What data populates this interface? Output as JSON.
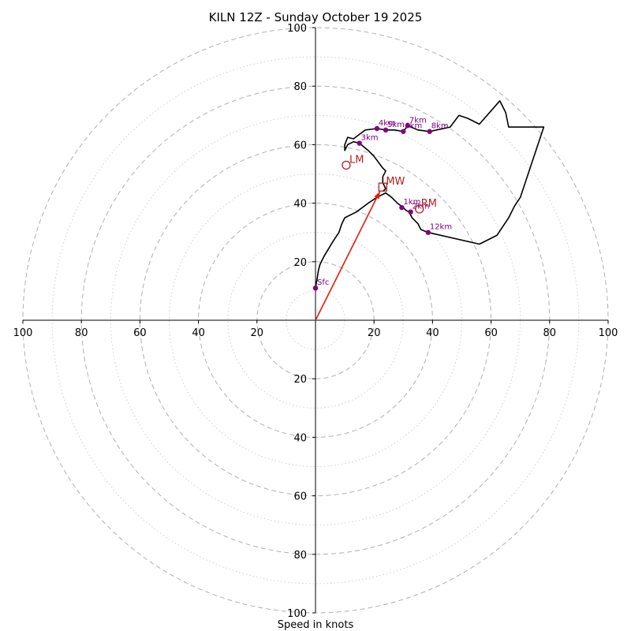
{
  "chart_data": {
    "type": "hodograph",
    "title": "KILN 12Z - Sunday October 19 2025",
    "xlabel": "Speed in knots",
    "units": "knots",
    "range": [
      -100,
      100
    ],
    "ring_major": [
      20,
      40,
      60,
      80,
      100
    ],
    "ring_minor": [
      10,
      30,
      50,
      70,
      90
    ],
    "x_tick_labels": [
      "100",
      "80",
      "60",
      "40",
      "20",
      "20",
      "40",
      "60",
      "80",
      "100"
    ],
    "x_tick_values": [
      -100,
      -80,
      -60,
      -40,
      -20,
      20,
      40,
      60,
      80,
      100
    ],
    "y_tick_labels": [
      "100",
      "80",
      "60",
      "40",
      "20",
      "20",
      "40",
      "60",
      "80",
      "100"
    ],
    "y_tick_values": [
      100,
      80,
      60,
      40,
      20,
      -20,
      -40,
      -60,
      -80,
      -100
    ],
    "trace": [
      [
        0,
        11
      ],
      [
        0.5,
        14
      ],
      [
        1,
        17
      ],
      [
        1.5,
        19
      ],
      [
        3,
        22
      ],
      [
        6,
        27
      ],
      [
        8,
        30
      ],
      [
        9,
        33
      ],
      [
        10,
        35
      ],
      [
        14,
        37
      ],
      [
        18,
        40
      ],
      [
        21,
        42
      ],
      [
        24,
        43.5
      ],
      [
        26,
        42
      ],
      [
        28,
        40
      ],
      [
        30,
        38.5
      ],
      [
        31,
        37.5
      ],
      [
        32,
        37
      ],
      [
        33,
        35
      ],
      [
        35,
        33
      ],
      [
        36,
        31
      ],
      [
        38.5,
        30
      ],
      [
        56,
        26
      ],
      [
        62,
        29
      ],
      [
        66,
        35
      ],
      [
        68,
        39
      ],
      [
        70,
        42
      ],
      [
        74,
        54
      ],
      [
        78,
        66
      ],
      [
        66,
        66
      ],
      [
        65,
        71
      ],
      [
        63,
        75
      ],
      [
        56,
        67
      ],
      [
        52,
        69
      ],
      [
        49,
        70
      ],
      [
        46,
        66
      ],
      [
        39,
        64.5
      ],
      [
        35,
        65
      ],
      [
        31.5,
        66.5
      ],
      [
        30,
        64.5
      ],
      [
        27,
        65
      ],
      [
        24,
        65
      ],
      [
        21,
        65.5
      ],
      [
        17,
        65
      ],
      [
        15,
        63.5
      ],
      [
        13,
        62
      ],
      [
        11,
        62.5
      ],
      [
        10,
        60
      ],
      [
        10,
        58
      ],
      [
        11,
        60
      ],
      [
        13,
        61
      ],
      [
        15,
        60.5
      ],
      [
        18,
        58
      ],
      [
        20,
        56
      ],
      [
        23,
        52
      ],
      [
        24,
        51
      ],
      [
        23,
        49
      ],
      [
        23,
        47
      ],
      [
        24,
        45
      ],
      [
        23,
        44
      ]
    ],
    "height_points": [
      {
        "label": "Sfc",
        "u": 0,
        "v": 11
      },
      {
        "label": "1km",
        "u": 29.5,
        "v": 38.5
      },
      {
        "label": "2km",
        "u": 32.5,
        "v": 37
      },
      {
        "label": "3km",
        "u": 15,
        "v": 60.5
      },
      {
        "label": "4km",
        "u": 21,
        "v": 65.5
      },
      {
        "label": "5km",
        "u": 24,
        "v": 65
      },
      {
        "label": "6km",
        "u": 30,
        "v": 64.5
      },
      {
        "label": "7km",
        "u": 31.5,
        "v": 66.5
      },
      {
        "label": "8km",
        "u": 39,
        "v": 64.5
      },
      {
        "label": "12km",
        "u": 38.5,
        "v": 30
      }
    ],
    "storm_motion": {
      "mw": {
        "label": "MW",
        "u": 23,
        "v": 45.5
      },
      "rm": {
        "label": "RM",
        "u": 35.5,
        "v": 38
      },
      "lm": {
        "label": "LM",
        "u": 10.5,
        "v": 53
      }
    },
    "shear_vector": {
      "from": [
        0,
        0
      ],
      "to": [
        22,
        44
      ]
    },
    "colors": {
      "trace": "#000000",
      "points": "#800080",
      "storm": "#b22222",
      "shear": "#e8190f",
      "grid": "#b0b0b0"
    }
  }
}
